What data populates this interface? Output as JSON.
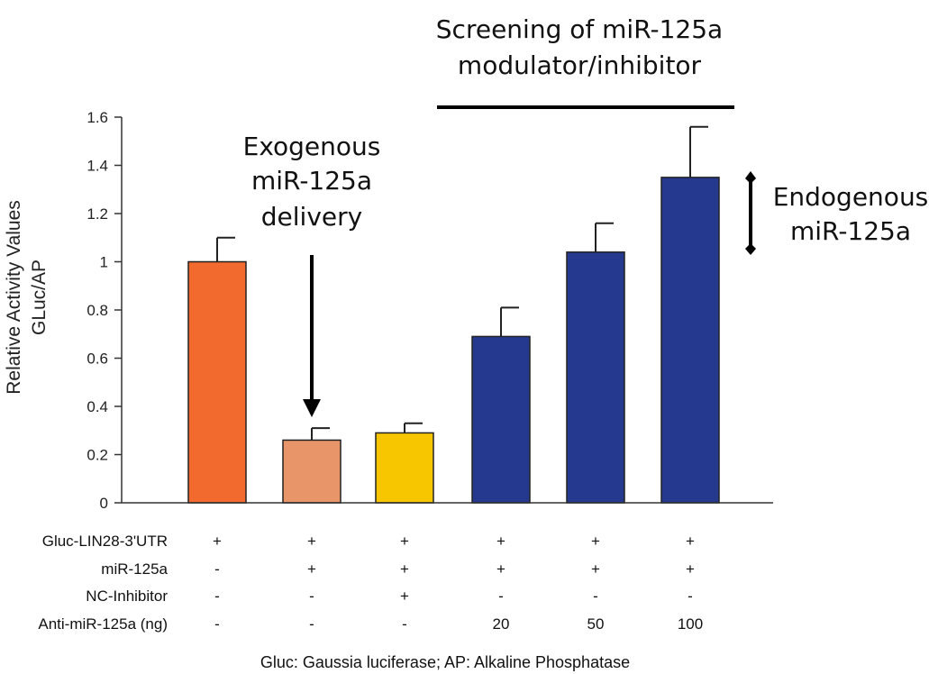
{
  "chart_data": {
    "type": "bar",
    "ylabel": "Relative Activity Values",
    "ylabel2": "GLuc/AP",
    "ylim": [
      0,
      1.6
    ],
    "yticks": [
      "0",
      "0.2",
      "0.4",
      "0.6",
      "0.8",
      "1",
      "1.2",
      "1.4",
      "1.6"
    ],
    "values": [
      1.0,
      0.26,
      0.29,
      0.69,
      1.04,
      1.35
    ],
    "errors": [
      0.1,
      0.05,
      0.04,
      0.12,
      0.12,
      0.21
    ],
    "colors": [
      "#f26a2e",
      "#e8956a",
      "#f7c600",
      "#253a8e",
      "#253a8e",
      "#253a8e"
    ],
    "conditions": {
      "labels": [
        "Gluc-LIN28-3'UTR",
        "miR-125a",
        "NC-Inhibitor",
        "Anti-miR-125a (ng)"
      ],
      "rows": [
        [
          "+",
          "+",
          "+",
          "+",
          "+",
          "+"
        ],
        [
          "-",
          "+",
          "+",
          "+",
          "+",
          "+"
        ],
        [
          "-",
          "-",
          "+",
          "-",
          "-",
          "-"
        ],
        [
          "-",
          "-",
          "-",
          "20",
          "50",
          "100"
        ]
      ]
    },
    "annotations": {
      "screening_line1": "Screening of miR-125a",
      "screening_line2": "modulator/inhibitor",
      "exogenous_line1": "Exogenous",
      "exogenous_line2": "miR-125a",
      "exogenous_line3": "delivery",
      "endogenous_line1": "Endogenous",
      "endogenous_line2": "miR-125a"
    },
    "footnote": "Gluc: Gaussia luciferase; AP: Alkaline Phosphatase"
  }
}
